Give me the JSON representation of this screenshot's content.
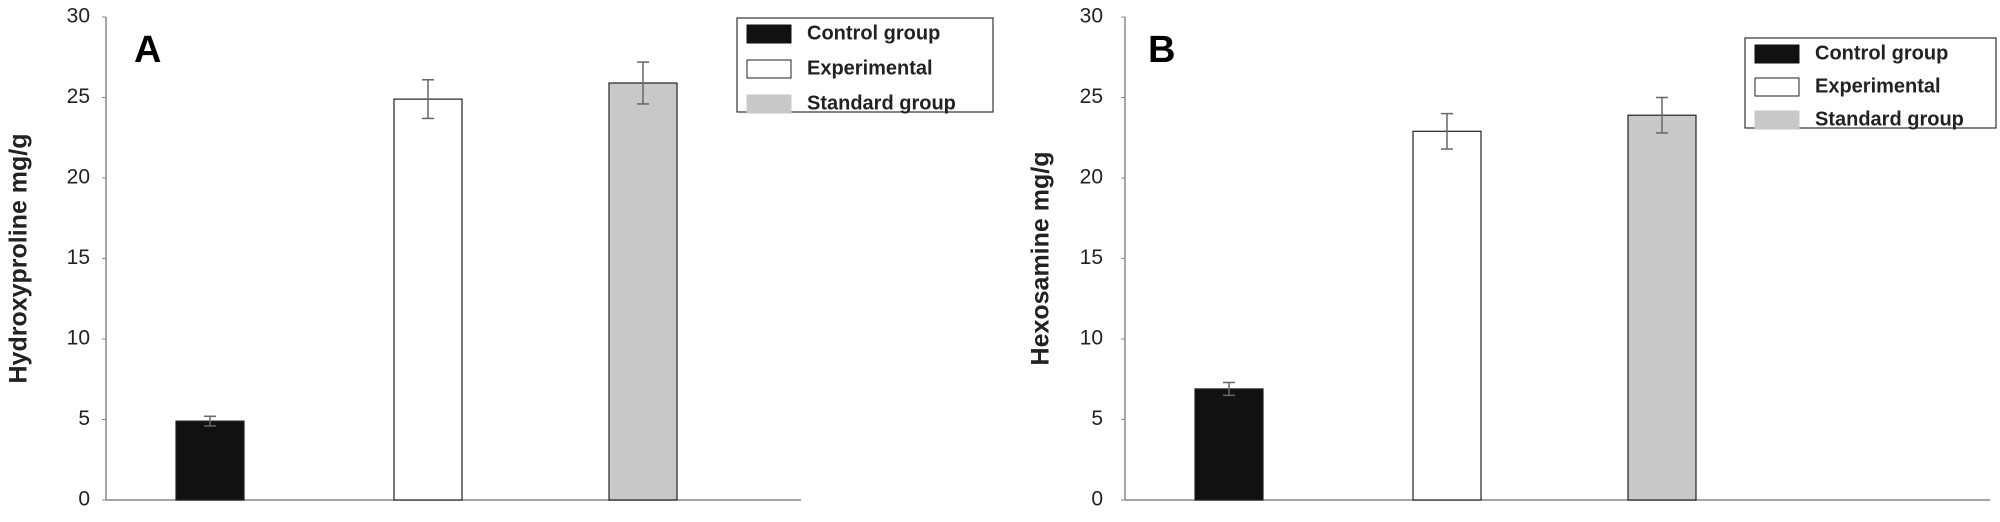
{
  "chart_data": [
    {
      "type": "bar",
      "panel_label": "A",
      "y_label": "Hydroxyproline  mg/g",
      "ylim": [
        0,
        30
      ],
      "yticks": [
        0,
        5,
        10,
        15,
        20,
        25,
        30
      ],
      "series": [
        {
          "name": "Control group",
          "color": "#111111",
          "values": [
            4.9
          ],
          "errors": [
            0.3
          ]
        },
        {
          "name": "Experimental",
          "color": "#ffffff",
          "values": [
            24.9
          ],
          "errors": [
            1.2
          ]
        },
        {
          "name": "Standard group",
          "color": "#c8c8c8",
          "values": [
            25.9
          ],
          "errors": [
            1.3
          ]
        }
      ]
    },
    {
      "type": "bar",
      "panel_label": "B",
      "y_label": "Hexosamine mg/g",
      "ylim": [
        0,
        30
      ],
      "yticks": [
        0,
        5,
        10,
        15,
        20,
        25,
        30
      ],
      "series": [
        {
          "name": "Control group",
          "color": "#111111",
          "values": [
            6.9
          ],
          "errors": [
            0.4
          ]
        },
        {
          "name": "Experimental",
          "color": "#ffffff",
          "values": [
            22.9
          ],
          "errors": [
            1.1
          ]
        },
        {
          "name": "Standard group",
          "color": "#c8c8c8",
          "values": [
            23.9
          ],
          "errors": [
            1.1
          ]
        }
      ]
    }
  ]
}
